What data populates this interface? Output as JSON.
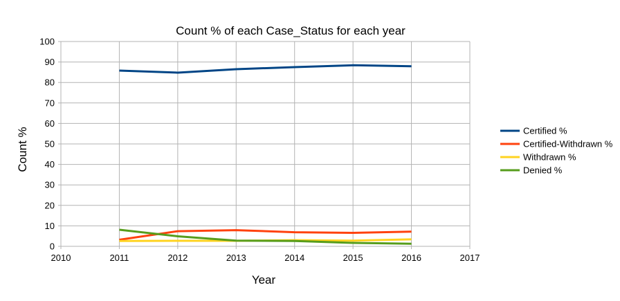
{
  "chart_data": {
    "type": "line",
    "title": "Count % of each Case_Status for each year",
    "xlabel": "Year",
    "ylabel": "Count %",
    "xlim": [
      2010,
      2017
    ],
    "ylim": [
      0,
      100
    ],
    "xticks": [
      2010,
      2011,
      2012,
      2013,
      2014,
      2015,
      2016,
      2017
    ],
    "yticks": [
      0,
      10,
      20,
      30,
      40,
      50,
      60,
      70,
      80,
      90,
      100
    ],
    "grid": true,
    "legend_position": "right",
    "x": [
      2011,
      2012,
      2013,
      2014,
      2015,
      2016
    ],
    "series": [
      {
        "name": "Certified %",
        "color": "#004586",
        "values": [
          85.8,
          84.8,
          86.5,
          87.5,
          88.4,
          87.9
        ]
      },
      {
        "name": "Certified-Withdrawn %",
        "color": "#ff420e",
        "values": [
          3.2,
          7.4,
          7.9,
          6.9,
          6.6,
          7.2
        ]
      },
      {
        "name": "Withdrawn %",
        "color": "#ffd320",
        "values": [
          2.6,
          2.7,
          2.7,
          3.0,
          2.8,
          3.4
        ]
      },
      {
        "name": "Denied %",
        "color": "#579d1c",
        "values": [
          8.1,
          4.9,
          2.8,
          2.6,
          1.7,
          1.3
        ]
      }
    ]
  }
}
